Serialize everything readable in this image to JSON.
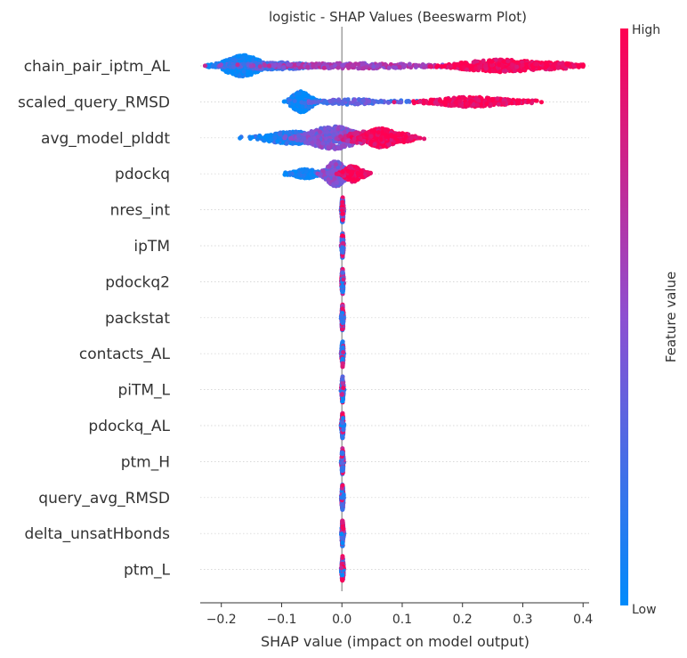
{
  "chart_data": {
    "type": "scatter",
    "subtype": "beeswarm",
    "title": "logistic - SHAP Values (Beeswarm Plot)",
    "xlabel": "SHAP value (impact on model output)",
    "xlim": [
      -0.235,
      0.41
    ],
    "x_ticks": [
      -0.2,
      -0.1,
      0.0,
      0.1,
      0.2,
      0.3,
      0.4
    ],
    "x_tick_labels": [
      "−0.2",
      "−0.1",
      "0.0",
      "0.1",
      "0.2",
      "0.3",
      "0.4"
    ],
    "colorbar": {
      "label": "Feature value",
      "high_label": "High",
      "low_label": "Low",
      "low_color": "#008bfb",
      "mid_color": "#8d4fd1",
      "high_color": "#ff0052"
    },
    "zero_line_color": "#999999",
    "grid": false,
    "features": [
      {
        "name": "chain_pair_iptm_AL",
        "clusters": [
          {
            "x": -0.165,
            "spread": 0.022,
            "thick": 24,
            "v": 0.02,
            "n": 420
          },
          {
            "x": -0.11,
            "spread": 0.045,
            "thick": 8,
            "v": 0.25,
            "n": 220
          },
          {
            "x": 0.02,
            "spread": 0.09,
            "thick": 6,
            "v": 0.6,
            "n": 260
          },
          {
            "x": 0.265,
            "spread": 0.05,
            "thick": 14,
            "v": 0.97,
            "n": 360
          },
          {
            "x": 0.35,
            "spread": 0.03,
            "thick": 8,
            "v": 0.97,
            "n": 160
          }
        ]
      },
      {
        "name": "scaled_query_RMSD",
        "clusters": [
          {
            "x": -0.067,
            "spread": 0.012,
            "thick": 24,
            "v": 0.05,
            "n": 260
          },
          {
            "x": 0.02,
            "spread": 0.04,
            "thick": 6,
            "v": 0.3,
            "n": 120
          },
          {
            "x": 0.215,
            "spread": 0.045,
            "thick": 11,
            "v": 0.97,
            "n": 320
          }
        ]
      },
      {
        "name": "avg_model_plddt",
        "clusters": [
          {
            "x": -0.08,
            "spread": 0.035,
            "thick": 14,
            "v": 0.1,
            "n": 300
          },
          {
            "x": -0.015,
            "spread": 0.03,
            "thick": 26,
            "v": 0.45,
            "n": 420
          },
          {
            "x": 0.035,
            "spread": 0.02,
            "thick": 14,
            "v": 0.75,
            "n": 180
          },
          {
            "x": 0.065,
            "spread": 0.018,
            "thick": 22,
            "v": 0.96,
            "n": 240
          },
          {
            "x": 0.1,
            "spread": 0.015,
            "thick": 10,
            "v": 0.96,
            "n": 100
          }
        ]
      },
      {
        "name": "pdockq",
        "clusters": [
          {
            "x": -0.06,
            "spread": 0.015,
            "thick": 10,
            "v": 0.05,
            "n": 180
          },
          {
            "x": -0.01,
            "spread": 0.012,
            "thick": 28,
            "v": 0.45,
            "n": 320
          },
          {
            "x": 0.018,
            "spread": 0.01,
            "thick": 18,
            "v": 0.95,
            "n": 200
          },
          {
            "x": 0.035,
            "spread": 0.006,
            "thick": 8,
            "v": 0.95,
            "n": 60
          }
        ]
      },
      {
        "name": "nres_int",
        "clusters": [
          {
            "x": 0.001,
            "spread": 0.001,
            "thick": 30,
            "v": -1,
            "n": 140
          }
        ]
      },
      {
        "name": "ipTM",
        "clusters": [
          {
            "x": 0.001,
            "spread": 0.001,
            "thick": 30,
            "v": -1,
            "n": 140
          }
        ]
      },
      {
        "name": "pdockq2",
        "clusters": [
          {
            "x": 0.001,
            "spread": 0.001,
            "thick": 30,
            "v": -1,
            "n": 140
          }
        ]
      },
      {
        "name": "packstat",
        "clusters": [
          {
            "x": 0.001,
            "spread": 0.001,
            "thick": 30,
            "v": -1,
            "n": 140
          }
        ]
      },
      {
        "name": "contacts_AL",
        "clusters": [
          {
            "x": 0.001,
            "spread": 0.001,
            "thick": 30,
            "v": -1,
            "n": 140
          }
        ]
      },
      {
        "name": "piTM_L",
        "clusters": [
          {
            "x": 0.001,
            "spread": 0.001,
            "thick": 30,
            "v": -1,
            "n": 140
          }
        ]
      },
      {
        "name": "pdockq_AL",
        "clusters": [
          {
            "x": 0.001,
            "spread": 0.001,
            "thick": 30,
            "v": -1,
            "n": 140
          }
        ]
      },
      {
        "name": "ptm_H",
        "clusters": [
          {
            "x": 0.001,
            "spread": 0.001,
            "thick": 30,
            "v": -1,
            "n": 140
          }
        ]
      },
      {
        "name": "query_avg_RMSD",
        "clusters": [
          {
            "x": 0.001,
            "spread": 0.001,
            "thick": 30,
            "v": -1,
            "n": 140
          }
        ]
      },
      {
        "name": "delta_unsatHbonds",
        "clusters": [
          {
            "x": 0.001,
            "spread": 0.001,
            "thick": 30,
            "v": -1,
            "n": 140
          }
        ]
      },
      {
        "name": "ptm_L",
        "clusters": [
          {
            "x": 0.001,
            "spread": 0.001,
            "thick": 30,
            "v": -1,
            "n": 140
          }
        ]
      }
    ]
  }
}
